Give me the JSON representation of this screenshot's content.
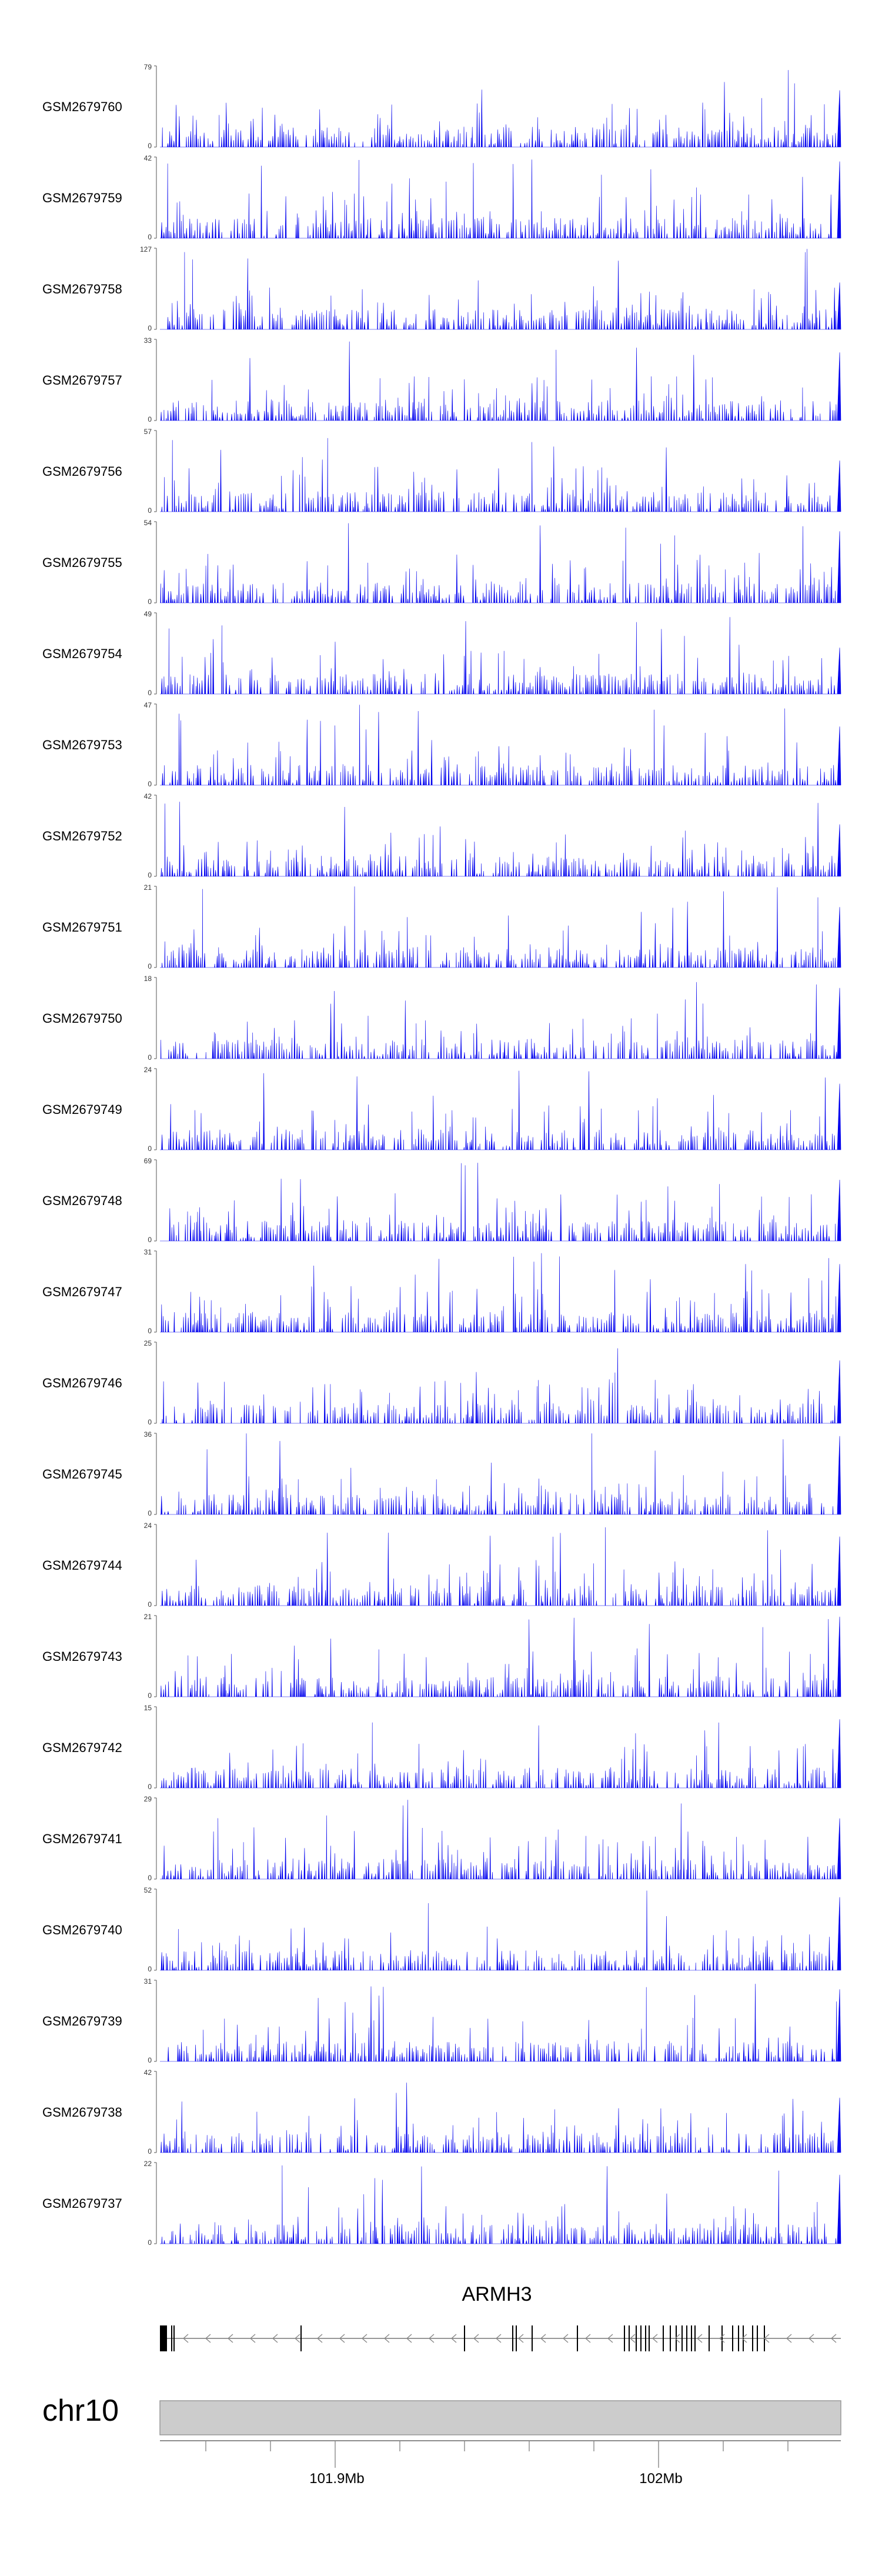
{
  "chart_data": {
    "type": "area",
    "chromosome": "chr10",
    "series_color": "#0000ee",
    "tracks": [
      {
        "name": "GSM2679760",
        "ymax": "79",
        "ymin": "0"
      },
      {
        "name": "GSM2679759",
        "ymax": "42",
        "ymin": "0"
      },
      {
        "name": "GSM2679758",
        "ymax": "127",
        "ymin": "0"
      },
      {
        "name": "GSM2679757",
        "ymax": "33",
        "ymin": "0"
      },
      {
        "name": "GSM2679756",
        "ymax": "57",
        "ymin": "0"
      },
      {
        "name": "GSM2679755",
        "ymax": "54",
        "ymin": "0"
      },
      {
        "name": "GSM2679754",
        "ymax": "49",
        "ymin": "0"
      },
      {
        "name": "GSM2679753",
        "ymax": "47",
        "ymin": "0"
      },
      {
        "name": "GSM2679752",
        "ymax": "42",
        "ymin": "0"
      },
      {
        "name": "GSM2679751",
        "ymax": "21",
        "ymin": "0"
      },
      {
        "name": "GSM2679750",
        "ymax": "18",
        "ymin": "0"
      },
      {
        "name": "GSM2679749",
        "ymax": "24",
        "ymin": "0"
      },
      {
        "name": "GSM2679748",
        "ymax": "69",
        "ymin": "0"
      },
      {
        "name": "GSM2679747",
        "ymax": "31",
        "ymin": "0"
      },
      {
        "name": "GSM2679746",
        "ymax": "25",
        "ymin": "0"
      },
      {
        "name": "GSM2679745",
        "ymax": "36",
        "ymin": "0"
      },
      {
        "name": "GSM2679744",
        "ymax": "24",
        "ymin": "0"
      },
      {
        "name": "GSM2679743",
        "ymax": "21",
        "ymin": "0"
      },
      {
        "name": "GSM2679742",
        "ymax": "15",
        "ymin": "0"
      },
      {
        "name": "GSM2679741",
        "ymax": "29",
        "ymin": "0"
      },
      {
        "name": "GSM2679740",
        "ymax": "52",
        "ymin": "0"
      },
      {
        "name": "GSM2679739",
        "ymax": "31",
        "ymin": "0"
      },
      {
        "name": "GSM2679738",
        "ymax": "42",
        "ymin": "0"
      },
      {
        "name": "GSM2679737",
        "ymax": "22",
        "ymin": "0"
      }
    ],
    "gene": {
      "name": "ARMH3",
      "strand": "-"
    },
    "axis": {
      "ticks": [
        "101.9Mb",
        "102Mb"
      ]
    }
  }
}
